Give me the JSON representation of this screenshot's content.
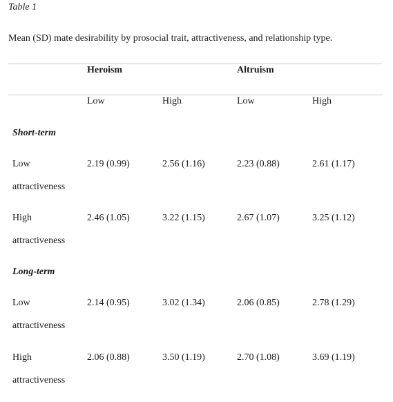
{
  "table_label": "Table 1",
  "caption": "Mean (SD) mate desirability by prosocial trait, attractiveness, and relationship type.",
  "header": {
    "group1": "Heroism",
    "group2": "Altruism",
    "sub": [
      "Low",
      "High",
      "Low",
      "High"
    ]
  },
  "sections": [
    {
      "title": "Short-term",
      "rows": [
        {
          "label_1": "Low",
          "label_2": "attractiveness",
          "values": [
            "2.19 (0.99)",
            "2.56 (1.16)",
            "2.23 (0.88)",
            "2.61 (1.17)"
          ]
        },
        {
          "label_1": "High",
          "label_2": "attractiveness",
          "values": [
            "2.46 (1.05)",
            "3.22 (1.15)",
            "2.67 (1.07)",
            "3.25 (1.12)"
          ]
        }
      ]
    },
    {
      "title": "Long-term",
      "rows": [
        {
          "label_1": "Low",
          "label_2": "attractiveness",
          "values": [
            "2.14 (0.95)",
            "3.02 (1.34)",
            "2.06 (0.85)",
            "2.78 (1.29)"
          ]
        },
        {
          "label_1": "High",
          "label_2": "attractiveness",
          "values": [
            "2.06 (0.88)",
            "3.50 (1.19)",
            "2.70 (1.08)",
            "3.69 (1.19)"
          ]
        }
      ]
    }
  ]
}
